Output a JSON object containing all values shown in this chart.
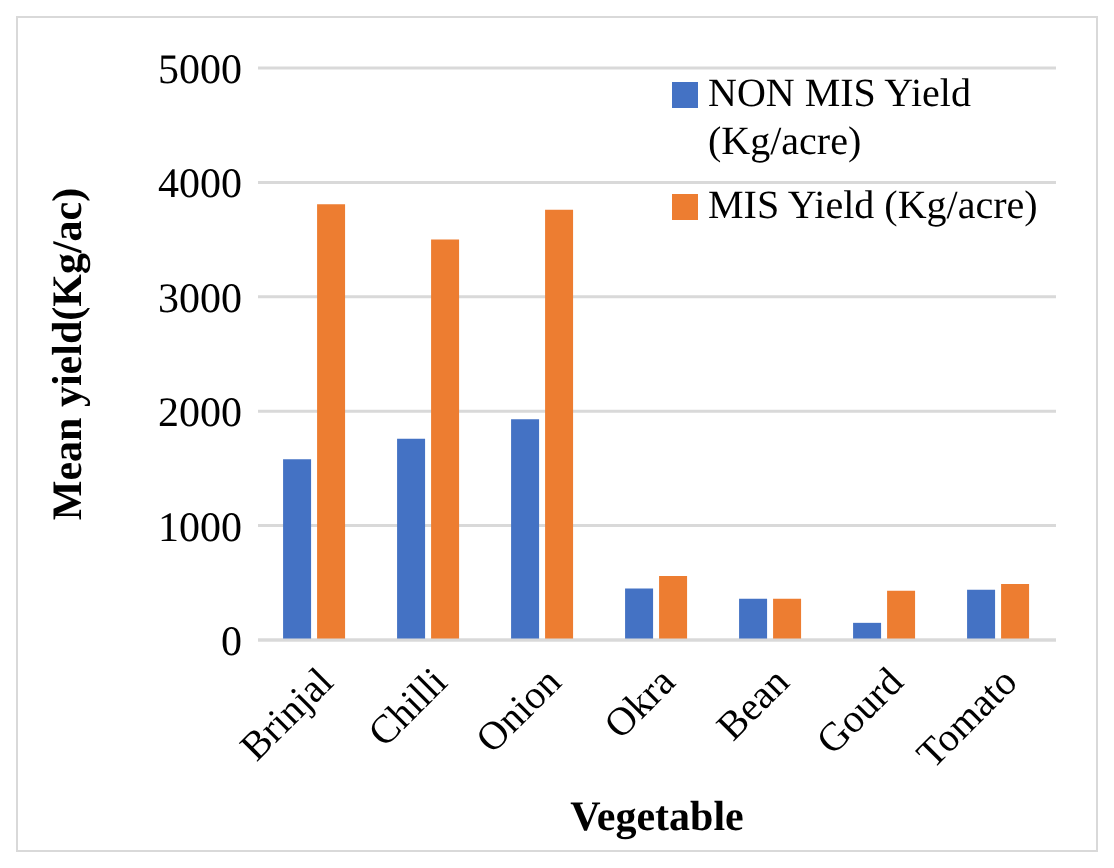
{
  "chart_data": {
    "type": "bar",
    "xlabel": "Vegetable",
    "ylabel": "Mean yield(Kg/ac)",
    "categories": [
      "Brinjal",
      "Chilli",
      "Onion",
      "Okra",
      "Bean",
      "Gourd",
      "Tomato"
    ],
    "series": [
      {
        "name": "NON MIS Yield (Kg/acre)",
        "color": "#4472c4",
        "values": [
          1580,
          1760,
          1930,
          450,
          360,
          150,
          440
        ]
      },
      {
        "name": "MIS Yield (Kg/acre)",
        "color": "#ed7d31",
        "values": [
          3810,
          3500,
          3760,
          560,
          360,
          430,
          490
        ]
      }
    ],
    "ylim": [
      0,
      5000
    ],
    "yticks": [
      0,
      1000,
      2000,
      3000,
      4000,
      5000
    ],
    "grid": "y",
    "legend": "top right"
  }
}
